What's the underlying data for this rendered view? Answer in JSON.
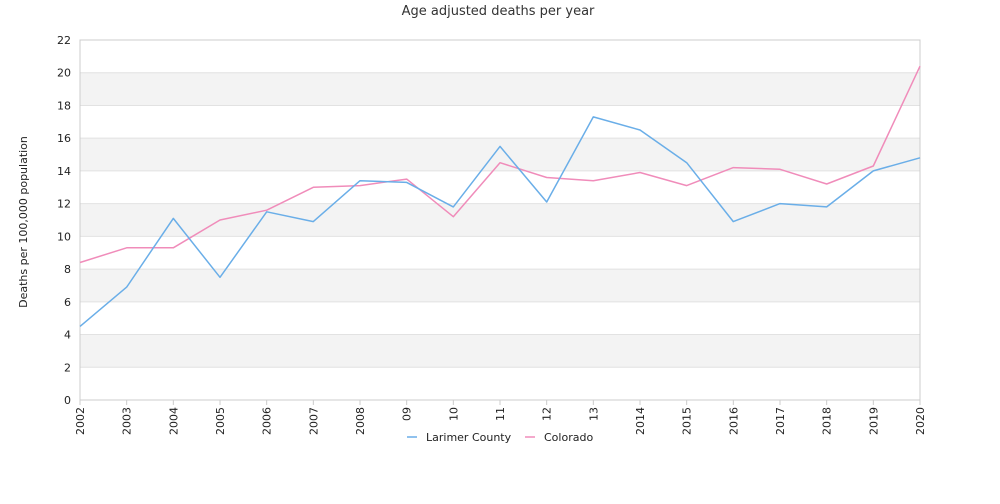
{
  "chart_data": {
    "type": "line",
    "title": "Age adjusted deaths per year",
    "xlabel": "",
    "ylabel": "Deaths per 100,000 population",
    "categories": [
      "2002",
      "2003",
      "2004",
      "2005",
      "2006",
      "2007",
      "2008",
      "09",
      "10",
      "11",
      "12",
      "13",
      "2014",
      "2015",
      "2016",
      "2017",
      "2018",
      "2019",
      "2020"
    ],
    "ylim": [
      0,
      22
    ],
    "yticks": [
      "0",
      "2",
      "4",
      "6",
      "8",
      "10",
      "12",
      "14",
      "16",
      "18",
      "20",
      "22"
    ],
    "grid": "horizontal alternating bands",
    "legend_position": "bottom-center",
    "series": [
      {
        "name": "Larimer County",
        "color": "#6aaee8",
        "values": [
          4.5,
          6.9,
          11.1,
          7.5,
          11.5,
          10.9,
          13.4,
          13.3,
          11.8,
          15.5,
          12.1,
          17.3,
          16.5,
          14.5,
          10.9,
          12.0,
          11.8,
          14.0,
          14.8
        ]
      },
      {
        "name": "Colorado",
        "color": "#f08cba",
        "values": [
          8.4,
          9.3,
          9.3,
          11.0,
          11.6,
          13.0,
          13.1,
          13.5,
          11.2,
          14.5,
          13.6,
          13.4,
          13.9,
          13.1,
          14.2,
          14.1,
          13.2,
          14.3,
          20.4
        ]
      }
    ]
  }
}
